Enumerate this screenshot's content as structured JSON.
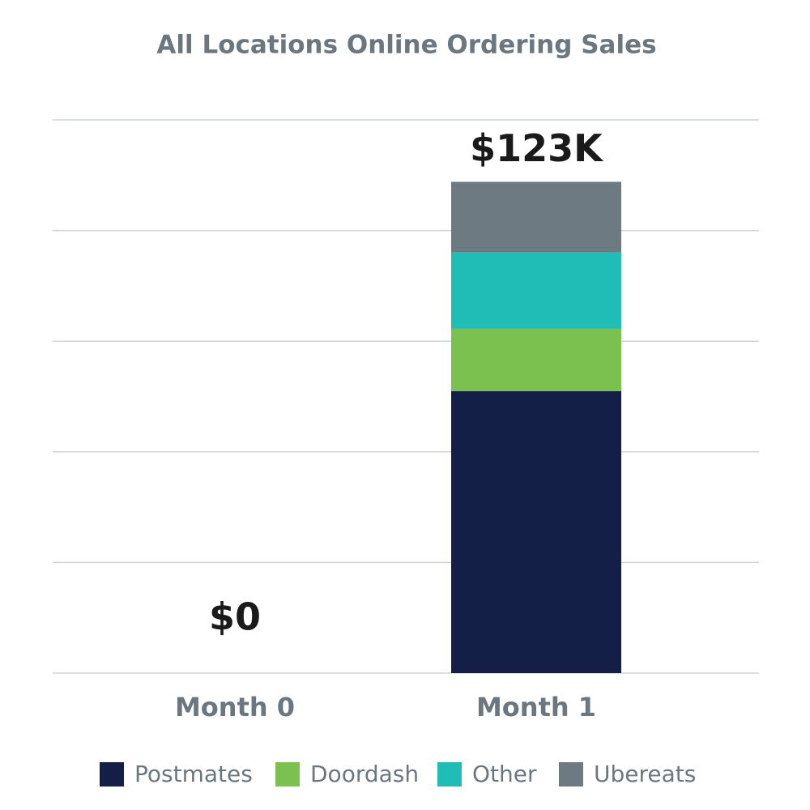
{
  "chart_data": {
    "type": "stacked_bar",
    "title": "All Locations Online Ordering Sales",
    "categories": [
      "Month 0",
      "Month 1"
    ],
    "series": [
      {
        "name": "Postmates",
        "color": "#141f48",
        "values": [
          0,
          70600
        ]
      },
      {
        "name": "Doordash",
        "color": "#7bc14f",
        "values": [
          0,
          15600
        ]
      },
      {
        "name": "Other",
        "color": "#1fbdb6",
        "values": [
          0,
          19100
        ]
      },
      {
        "name": "Ubereats",
        "color": "#6e7a82",
        "values": [
          0,
          17700
        ]
      }
    ],
    "totals": [
      0,
      123000
    ],
    "total_labels": [
      "$0",
      "$123K"
    ],
    "ylim": [
      0,
      138500
    ],
    "yticks": [
      0,
      27700,
      55400,
      83100,
      110800,
      138500
    ],
    "grid": true,
    "legend": "bottom"
  }
}
